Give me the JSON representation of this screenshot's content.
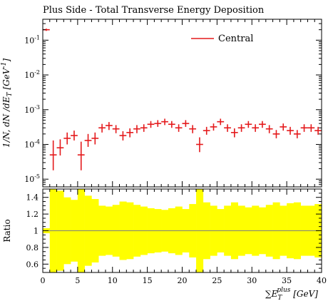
{
  "chart_data": [
    {
      "type": "scatter",
      "panel": "main",
      "title": "Plus Side - Total Transverse Energy Deposition",
      "ylabel": "1/N, dN/dE_T [GeV^-1]",
      "ylabel_parts": {
        "pre": "1/",
        "n": "N",
        "mid": ", d",
        "nn": "N",
        "slash": " /d",
        "e": "E",
        "sub": "T",
        "unit": " [GeV",
        "sup": "-1",
        "close": "]"
      },
      "y_scale": "log",
      "ylim": [
        6e-06,
        0.4
      ],
      "xlim": [
        0,
        40
      ],
      "y_ticks": [
        {
          "value": 0.1,
          "base": "10",
          "exp": "-1"
        },
        {
          "value": 0.01,
          "base": "10",
          "exp": "-2"
        },
        {
          "value": 0.001,
          "base": "10",
          "exp": "-3"
        },
        {
          "value": 0.0001,
          "base": "10",
          "exp": "-4"
        },
        {
          "value": 1e-05,
          "base": "10",
          "exp": "-5"
        }
      ],
      "legend": {
        "position": "top-right"
      },
      "series": [
        {
          "name": "Central",
          "color": "#e41a1c",
          "x": [
            0.5,
            1.5,
            2.5,
            3.5,
            4.5,
            5.5,
            6.5,
            7.5,
            8.5,
            9.5,
            10.5,
            11.5,
            12.5,
            13.5,
            14.5,
            15.5,
            16.5,
            17.5,
            18.5,
            19.5,
            20.5,
            21.5,
            22.5,
            23.5,
            24.5,
            25.5,
            26.5,
            27.5,
            28.5,
            29.5,
            30.5,
            31.5,
            32.5,
            33.5,
            34.5,
            35.5,
            36.5,
            37.5,
            38.5,
            39.5
          ],
          "y": [
            0.2,
            5e-05,
            8e-05,
            0.00015,
            0.00018,
            5e-05,
            0.00013,
            0.00015,
            0.0003,
            0.00035,
            0.00028,
            0.00018,
            0.00022,
            0.00028,
            0.0003,
            0.00038,
            0.0004,
            0.00045,
            0.00038,
            0.0003,
            0.0004,
            0.00028,
            0.0001,
            0.00025,
            0.00032,
            0.00045,
            0.0003,
            0.00022,
            0.0003,
            0.00038,
            0.0003,
            0.00038,
            0.00028,
            0.0002,
            0.00032,
            0.00025,
            0.0002,
            0.0003,
            0.0003,
            0.00025
          ],
          "y_low": [
            0.185,
            1.8e-05,
            4.8e-05,
            0.0001,
            0.00013,
            1.8e-05,
            8.5e-05,
            0.0001,
            0.00022,
            0.00026,
            0.00021,
            0.00013,
            0.00016,
            0.00021,
            0.00023,
            0.0003,
            0.00032,
            0.00036,
            0.0003,
            0.00023,
            0.00032,
            0.00021,
            6e-05,
            0.00019,
            0.00025,
            0.00036,
            0.00023,
            0.00016,
            0.00023,
            0.0003,
            0.00023,
            0.0003,
            0.00021,
            0.00015,
            0.00025,
            0.00019,
            0.00015,
            0.00023,
            0.00023,
            0.00019
          ],
          "y_high": [
            0.215,
            0.00013,
            0.00014,
            0.00022,
            0.00025,
            0.00012,
            0.0002,
            0.00022,
            0.00039,
            0.00044,
            0.00036,
            0.00024,
            0.00029,
            0.00036,
            0.00038,
            0.00047,
            0.0005,
            0.00055,
            0.00047,
            0.00038,
            0.0005,
            0.00036,
            0.00016,
            0.00032,
            0.0004,
            0.00055,
            0.00038,
            0.00029,
            0.00038,
            0.00047,
            0.00038,
            0.00047,
            0.00036,
            0.00026,
            0.0004,
            0.00032,
            0.00026,
            0.00038,
            0.00038,
            0.00032
          ]
        }
      ]
    },
    {
      "type": "bar",
      "panel": "ratio",
      "ylabel": "Ratio",
      "xlabel": "∑E_T^plus [GeV]",
      "xlabel_parts": {
        "sum": "∑",
        "e": "E",
        "sub": "T",
        "sup": "plus",
        "unit": " [GeV]"
      },
      "xlim": [
        0,
        40
      ],
      "ylim": [
        0.5,
        1.5
      ],
      "x_ticks": [
        "0",
        "5",
        "10",
        "15",
        "20",
        "25",
        "30",
        "35",
        "40"
      ],
      "y_ticks": [
        "0.6",
        "0.8",
        "1",
        "1.2",
        "1.4"
      ],
      "reference_line": 1.0,
      "band_color": "#ffff00",
      "band": {
        "x_low": [
          0,
          1,
          2,
          3,
          4,
          5,
          6,
          7,
          8,
          9,
          10,
          11,
          12,
          13,
          14,
          15,
          16,
          17,
          18,
          19,
          20,
          21,
          22,
          23,
          24,
          25,
          26,
          27,
          28,
          29,
          30,
          31,
          32,
          33,
          34,
          35,
          36,
          37,
          38,
          39
        ],
        "low": [
          0.97,
          0.5,
          0.52,
          0.6,
          0.63,
          0.5,
          0.58,
          0.62,
          0.7,
          0.71,
          0.69,
          0.65,
          0.66,
          0.69,
          0.71,
          0.73,
          0.74,
          0.75,
          0.73,
          0.71,
          0.74,
          0.68,
          0.5,
          0.66,
          0.7,
          0.74,
          0.7,
          0.66,
          0.7,
          0.72,
          0.7,
          0.72,
          0.69,
          0.66,
          0.7,
          0.67,
          0.66,
          0.7,
          0.7,
          0.68
        ],
        "high": [
          1.03,
          1.5,
          1.48,
          1.4,
          1.37,
          1.5,
          1.42,
          1.38,
          1.3,
          1.29,
          1.31,
          1.35,
          1.34,
          1.31,
          1.29,
          1.27,
          1.26,
          1.25,
          1.27,
          1.29,
          1.26,
          1.32,
          1.5,
          1.34,
          1.3,
          1.26,
          1.3,
          1.34,
          1.3,
          1.28,
          1.3,
          1.28,
          1.31,
          1.34,
          1.3,
          1.33,
          1.34,
          1.3,
          1.3,
          1.32
        ]
      }
    }
  ]
}
